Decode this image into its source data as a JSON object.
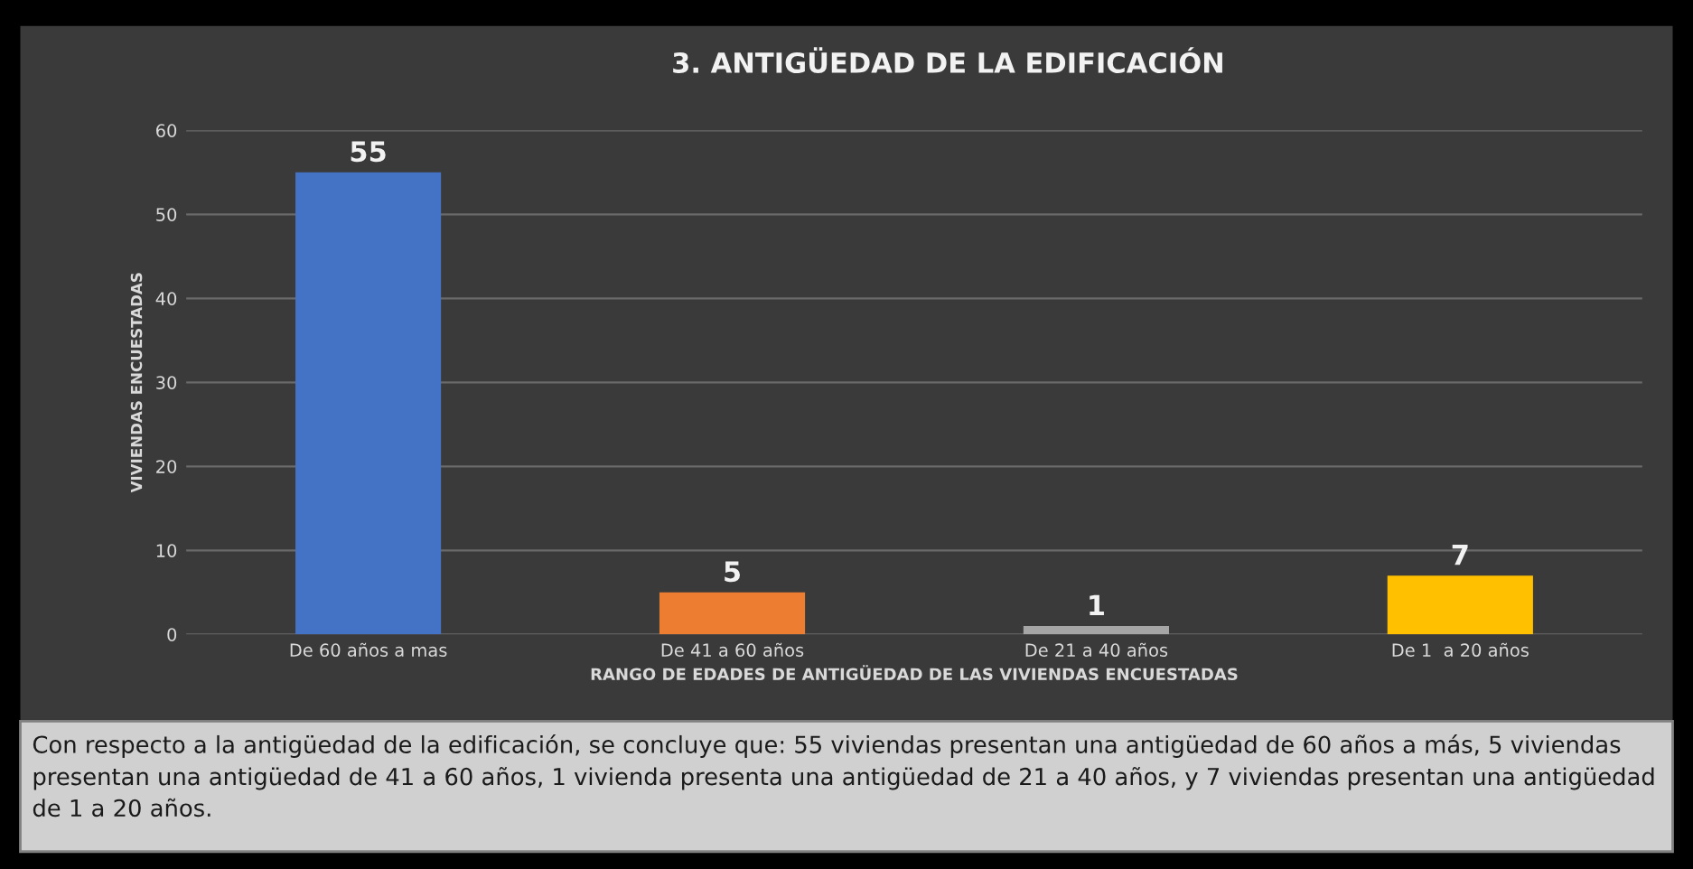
{
  "chart_data": {
    "type": "bar",
    "title": "3. ANTIGÜEDAD DE LA EDIFICACIÓN",
    "xlabel": "RANGO DE EDADES DE ANTIGÜEDAD DE LAS VIVIENDAS ENCUESTADAS",
    "ylabel": "VIVIENDAS ENCUESTADAS",
    "categories": [
      "De 60 años a mas",
      "De 41 a 60 años",
      "De 21 a 40 años",
      "De 1  a 20 años"
    ],
    "values": [
      55,
      5,
      1,
      7
    ],
    "colors": [
      "#4472c4",
      "#ed7d31",
      "#a5a5a5",
      "#ffc000"
    ],
    "ylim": [
      0,
      60
    ],
    "yticks": [
      0,
      10,
      20,
      30,
      40,
      50,
      60
    ],
    "grid": "y",
    "data_labels": true,
    "annotations": [
      "Con respecto a la antigüedad de la edificación, se concluye que: 55 viviendas presentan una antigüedad de 60 años a más, 5 viviendas presentan una antigüedad de 41 a 60 años, 1 vivienda presenta una antigüedad de 21 a 40 años, y 7 viviendas presentan una antigüedad de 1 a 20 años."
    ]
  }
}
